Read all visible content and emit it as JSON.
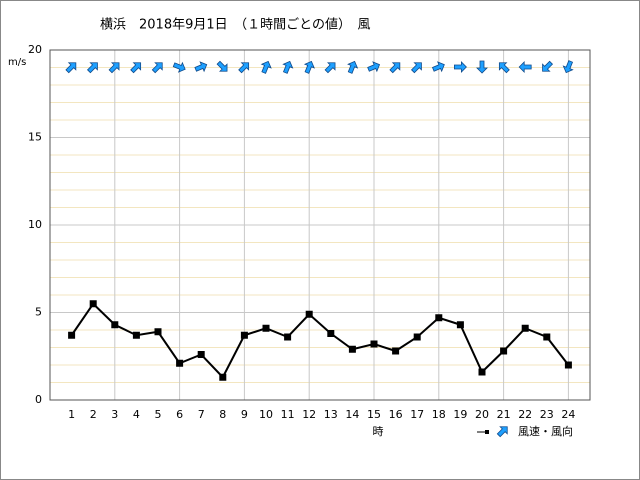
{
  "chart_data": {
    "type": "line",
    "title": "横浜　2018年9月1日　（１時間ごとの値）　風",
    "y_unit": "m/s",
    "x_label": "時",
    "x": [
      1,
      2,
      3,
      4,
      5,
      6,
      7,
      8,
      9,
      10,
      11,
      12,
      13,
      14,
      15,
      16,
      17,
      18,
      19,
      20,
      21,
      22,
      23,
      24
    ],
    "xlim": [
      0,
      25
    ],
    "xticks": [
      1,
      2,
      3,
      4,
      5,
      6,
      7,
      8,
      9,
      10,
      11,
      12,
      13,
      14,
      15,
      16,
      17,
      18,
      19,
      20,
      21,
      22,
      23,
      24
    ],
    "ylim": [
      0,
      20
    ],
    "yticks": [
      0,
      5,
      10,
      15,
      20
    ],
    "grid": true,
    "series": [
      {
        "name": "風速・風向",
        "color": "#000000",
        "values": [
          3.7,
          5.5,
          4.3,
          3.7,
          3.9,
          2.1,
          2.6,
          1.3,
          3.7,
          4.1,
          3.6,
          4.9,
          3.8,
          2.9,
          3.2,
          2.8,
          3.6,
          4.7,
          4.3,
          1.6,
          2.8,
          4.1,
          3.6,
          2.0
        ]
      }
    ],
    "directions": [
      45,
      45,
      45,
      45,
      45,
      112,
      67,
      135,
      45,
      22,
      22,
      22,
      45,
      22,
      67,
      45,
      45,
      67,
      90,
      180,
      315,
      270,
      225,
      202
    ],
    "arrow_color": "#1ea0ff"
  }
}
